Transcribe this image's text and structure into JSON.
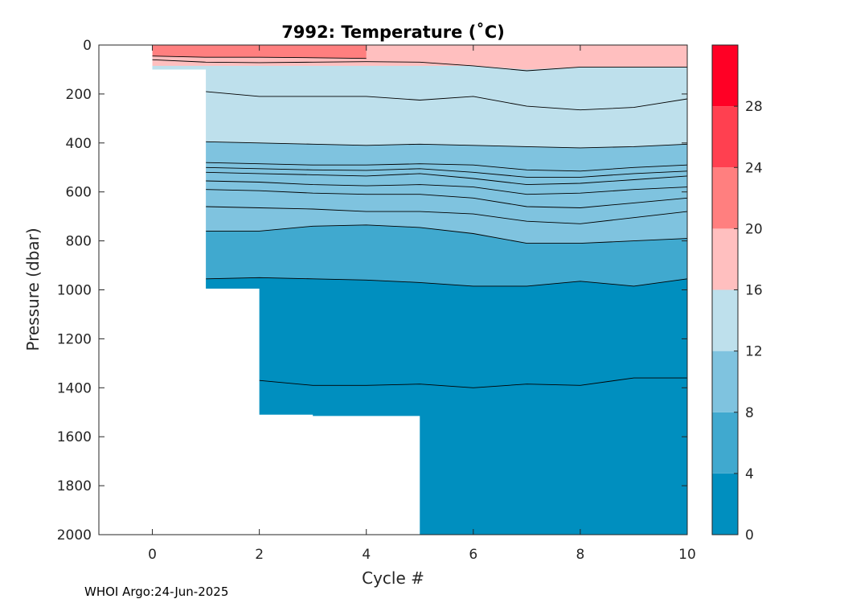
{
  "chart_data": {
    "type": "heatmap",
    "title": "7992:  Temperature (˚C)",
    "xlabel": "Cycle #",
    "ylabel": "Pressure (dbar)",
    "xlim": [
      -1,
      10
    ],
    "ylim": [
      2000,
      0
    ],
    "x_ticks": [
      "0",
      "2",
      "4",
      "6",
      "8",
      "10"
    ],
    "y_ticks": [
      "0",
      "200",
      "400",
      "600",
      "800",
      "1000",
      "1200",
      "1400",
      "1600",
      "1800",
      "2000"
    ],
    "colorbar": {
      "levels": [
        0,
        4,
        8,
        12,
        16,
        20,
        24,
        28,
        32
      ],
      "tick_labels": [
        "0",
        "4",
        "8",
        "12",
        "16",
        "20",
        "24",
        "28"
      ],
      "colors": [
        "#008FBF",
        "#40A9CF",
        "#7FC3DF",
        "#BEE0EC",
        "#FFBFBF",
        "#FF7F7F",
        "#FF4050",
        "#FF0025"
      ]
    },
    "profile_depth": [
      {
        "cycle": 0,
        "max_pressure": 100
      },
      {
        "cycle": 1,
        "max_pressure": 995
      },
      {
        "cycle": 2,
        "max_pressure": 1510
      },
      {
        "cycle": 3,
        "max_pressure": 1515
      },
      {
        "cycle": 4,
        "max_pressure": 1515
      },
      {
        "cycle": 5,
        "max_pressure": 2000
      },
      {
        "cycle": 6,
        "max_pressure": 2000
      },
      {
        "cycle": 7,
        "max_pressure": 2000
      },
      {
        "cycle": 8,
        "max_pressure": 2000
      },
      {
        "cycle": 9,
        "max_pressure": 2000
      },
      {
        "cycle": 10,
        "max_pressure": 2000
      }
    ],
    "isotherms": [
      {
        "temperature": 20,
        "x": [
          0,
          1,
          2,
          3,
          4
        ],
        "pressure": [
          45,
          50,
          50,
          52,
          55
        ]
      },
      {
        "temperature": 18,
        "x": [
          0,
          1,
          2,
          3,
          4,
          5,
          6,
          7,
          8,
          9,
          10
        ],
        "pressure": [
          60,
          70,
          72,
          70,
          68,
          70,
          85,
          105,
          90,
          90,
          90
        ]
      },
      {
        "temperature": 16,
        "x": [
          1,
          2,
          3,
          4,
          5,
          6,
          7,
          8,
          9,
          10
        ],
        "pressure": [
          190,
          210,
          210,
          210,
          225,
          210,
          250,
          265,
          255,
          220
        ]
      },
      {
        "temperature": 12,
        "x": [
          1,
          2,
          3,
          4,
          5,
          6,
          7,
          8,
          9,
          10
        ],
        "pressure": [
          395,
          400,
          405,
          410,
          405,
          410,
          415,
          420,
          415,
          405
        ]
      },
      {
        "temperature": 11,
        "x": [
          1,
          2,
          3,
          4,
          5,
          6,
          7,
          8,
          9,
          10
        ],
        "pressure": [
          480,
          485,
          490,
          490,
          485,
          490,
          510,
          515,
          500,
          490
        ]
      },
      {
        "temperature": 10.5,
        "x": [
          1,
          2,
          3,
          4,
          5,
          6,
          7,
          8,
          9,
          10
        ],
        "pressure": [
          500,
          505,
          510,
          512,
          505,
          520,
          540,
          540,
          525,
          515
        ]
      },
      {
        "temperature": 10,
        "x": [
          1,
          2,
          3,
          4,
          5,
          6,
          7,
          8,
          9,
          10
        ],
        "pressure": [
          520,
          525,
          530,
          535,
          525,
          545,
          570,
          565,
          550,
          535
        ]
      },
      {
        "temperature": 9,
        "x": [
          1,
          2,
          3,
          4,
          5,
          6,
          7,
          8,
          9,
          10
        ],
        "pressure": [
          555,
          560,
          570,
          575,
          570,
          580,
          610,
          605,
          590,
          580
        ]
      },
      {
        "temperature": 8,
        "x": [
          1,
          2,
          3,
          4,
          5,
          6,
          7,
          8,
          9,
          10
        ],
        "pressure": [
          590,
          595,
          605,
          610,
          610,
          625,
          660,
          665,
          645,
          625
        ]
      },
      {
        "temperature": 7,
        "x": [
          1,
          2,
          3,
          4,
          5,
          6,
          7,
          8,
          9,
          10
        ],
        "pressure": [
          660,
          665,
          670,
          680,
          680,
          690,
          720,
          730,
          705,
          680
        ]
      },
      {
        "temperature": 6,
        "x": [
          1,
          2,
          3,
          4,
          5,
          6,
          7,
          8,
          9,
          10
        ],
        "pressure": [
          760,
          760,
          740,
          735,
          745,
          770,
          810,
          810,
          800,
          790
        ]
      },
      {
        "temperature": 4,
        "x": [
          1,
          2,
          3,
          4,
          5,
          6,
          7,
          8,
          9,
          10
        ],
        "pressure": [
          955,
          950,
          955,
          960,
          970,
          985,
          985,
          965,
          985,
          955
        ]
      },
      {
        "temperature": 3,
        "x": [
          2,
          3,
          4,
          5,
          6,
          7,
          8,
          9,
          10
        ],
        "pressure": [
          1370,
          1390,
          1390,
          1385,
          1400,
          1385,
          1390,
          1360,
          1360
        ]
      }
    ],
    "bands": [
      {
        "color_index": 4,
        "x": [
          0,
          1,
          2,
          3,
          4,
          5,
          6,
          7,
          8,
          9,
          10
        ],
        "top": [
          0,
          0,
          0,
          0,
          0,
          0,
          0,
          0,
          0,
          0,
          0
        ],
        "bottom": [
          85,
          85,
          85,
          85,
          85,
          85,
          85,
          100,
          90,
          90,
          90
        ]
      },
      {
        "color_index": 5,
        "x": [
          0,
          1,
          2,
          3,
          4
        ],
        "top": [
          0,
          0,
          0,
          0,
          0
        ],
        "bottom": [
          45,
          50,
          50,
          52,
          55
        ]
      }
    ]
  },
  "footer": "WHOI Argo:24-Jun-2025"
}
